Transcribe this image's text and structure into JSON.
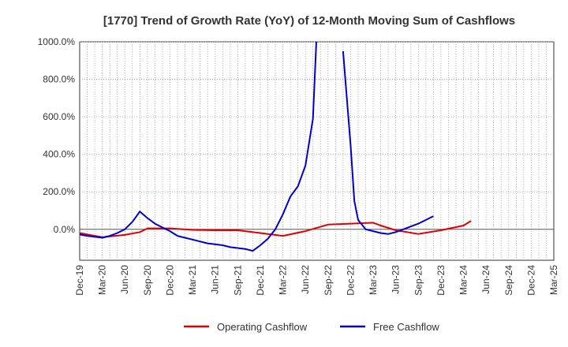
{
  "chart_data": {
    "type": "line",
    "title": "[1770]  Trend of Growth Rate (YoY) of 12-Month Moving Sum of Cashflows",
    "xlabel": "",
    "ylabel": "",
    "x_tick_labels": [
      "Dec-19",
      "Mar-20",
      "Jun-20",
      "Sep-20",
      "Dec-20",
      "Mar-21",
      "Jun-21",
      "Sep-21",
      "Dec-21",
      "Mar-22",
      "Jun-22",
      "Sep-22",
      "Dec-22",
      "Mar-23",
      "Jun-23",
      "Sep-23",
      "Dec-23",
      "Mar-24",
      "Jun-24",
      "Sep-24",
      "Dec-24",
      "Mar-25"
    ],
    "y_tick_labels": [
      "1000.0%",
      "800.0%",
      "600.0%",
      "400.0%",
      "200.0%",
      "0.0%"
    ],
    "y_ticks": [
      1000,
      800,
      600,
      400,
      200,
      0
    ],
    "ylim": [
      -165,
      1000
    ],
    "x_range_months": [
      0,
      63
    ],
    "grid": true,
    "legend_position": "bottom",
    "colors": {
      "operating": "#e00000",
      "free": "#0000cc",
      "grid": "#999999",
      "zero": "#555555"
    },
    "series": [
      {
        "name": "Operating Cashflow",
        "color": "#e00000",
        "points": [
          [
            0,
            -20
          ],
          [
            3,
            -42
          ],
          [
            6,
            -30
          ],
          [
            8,
            -15
          ],
          [
            9,
            5
          ],
          [
            12,
            5
          ],
          [
            15,
            -3
          ],
          [
            18,
            -5
          ],
          [
            21,
            -5
          ],
          [
            24,
            -20
          ],
          [
            27,
            -35
          ],
          [
            30,
            -10
          ],
          [
            33,
            25
          ],
          [
            36,
            30
          ],
          [
            39,
            35
          ],
          [
            40,
            20
          ],
          [
            42,
            -5
          ],
          [
            45,
            -25
          ],
          [
            48,
            -5
          ],
          [
            51,
            20
          ],
          [
            52,
            45
          ]
        ]
      },
      {
        "name": "Free Cashflow",
        "color": "#0000cc",
        "points": [
          [
            0,
            -28
          ],
          [
            1,
            -35
          ],
          [
            2,
            -40
          ],
          [
            3,
            -45
          ],
          [
            4,
            -35
          ],
          [
            5,
            -20
          ],
          [
            6,
            0
          ],
          [
            7,
            40
          ],
          [
            8,
            95
          ],
          [
            9,
            60
          ],
          [
            10,
            30
          ],
          [
            11,
            10
          ],
          [
            12,
            -10
          ],
          [
            13,
            -35
          ],
          [
            14,
            -45
          ],
          [
            15,
            -55
          ],
          [
            16,
            -65
          ],
          [
            17,
            -75
          ],
          [
            18,
            -80
          ],
          [
            19,
            -85
          ],
          [
            20,
            -95
          ],
          [
            21,
            -100
          ],
          [
            22,
            -105
          ],
          [
            23,
            -115
          ],
          [
            24,
            -85
          ],
          [
            25,
            -50
          ],
          [
            26,
            0
          ],
          [
            27,
            80
          ],
          [
            28,
            175
          ],
          [
            29,
            230
          ],
          [
            30,
            340
          ],
          [
            31,
            590
          ],
          [
            31.5,
            1050
          ],
          null,
          [
            35,
            950
          ],
          [
            36,
            450
          ],
          [
            36.5,
            150
          ],
          [
            37,
            50
          ],
          [
            38,
            0
          ],
          [
            39,
            -10
          ],
          [
            40,
            -20
          ],
          [
            41,
            -25
          ],
          [
            42,
            -15
          ],
          [
            43,
            0
          ],
          [
            44,
            15
          ],
          [
            45,
            30
          ],
          [
            46,
            50
          ],
          [
            47,
            70
          ]
        ]
      }
    ],
    "point_x_units": "months since Dec-19"
  }
}
